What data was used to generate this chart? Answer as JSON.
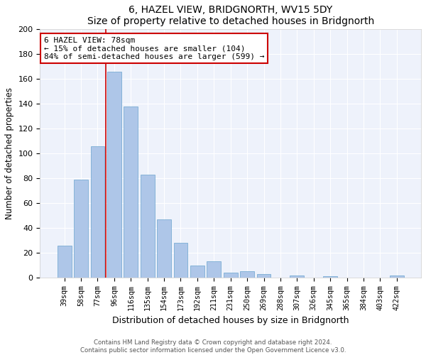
{
  "title": "6, HAZEL VIEW, BRIDGNORTH, WV15 5DY",
  "subtitle": "Size of property relative to detached houses in Bridgnorth",
  "xlabel": "Distribution of detached houses by size in Bridgnorth",
  "ylabel": "Number of detached properties",
  "bar_labels": [
    "39sqm",
    "58sqm",
    "77sqm",
    "96sqm",
    "116sqm",
    "135sqm",
    "154sqm",
    "173sqm",
    "192sqm",
    "211sqm",
    "231sqm",
    "250sqm",
    "269sqm",
    "288sqm",
    "307sqm",
    "326sqm",
    "345sqm",
    "365sqm",
    "384sqm",
    "403sqm",
    "422sqm"
  ],
  "bar_values": [
    26,
    79,
    106,
    166,
    138,
    83,
    47,
    28,
    10,
    13,
    4,
    5,
    3,
    0,
    2,
    0,
    1,
    0,
    0,
    0,
    2
  ],
  "bar_color": "#aec6e8",
  "bar_edge_color": "#7aadd4",
  "ylim": [
    0,
    200
  ],
  "yticks": [
    0,
    20,
    40,
    60,
    80,
    100,
    120,
    140,
    160,
    180,
    200
  ],
  "annotation_line1": "6 HAZEL VIEW: 78sqm",
  "annotation_line2": "← 15% of detached houses are smaller (104)",
  "annotation_line3": "84% of semi-detached houses are larger (599) →",
  "vline_color": "#cc0000",
  "annotation_box_color": "#ffffff",
  "annotation_box_edge_color": "#cc0000",
  "footer_line1": "Contains HM Land Registry data © Crown copyright and database right 2024.",
  "footer_line2": "Contains public sector information licensed under the Open Government Licence v3.0.",
  "background_color": "#ffffff",
  "plot_bg_color": "#eef2fb"
}
